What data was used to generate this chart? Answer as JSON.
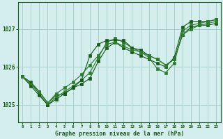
{
  "title": "Graphe pression niveau de la mer (hPa)",
  "bg_color": "#d4eeee",
  "grid_color": "#aad0d0",
  "line_color_dark": "#1a5c1a",
  "line_color_med": "#2e7d2e",
  "xlim": [
    -0.5,
    23.5
  ],
  "ylim": [
    1024.55,
    1027.7
  ],
  "yticks": [
    1025,
    1026,
    1027
  ],
  "xticks": [
    0,
    1,
    2,
    3,
    4,
    5,
    6,
    7,
    8,
    9,
    10,
    11,
    12,
    13,
    14,
    15,
    16,
    17,
    18,
    19,
    20,
    21,
    22,
    23
  ],
  "series": [
    {
      "x": [
        0,
        1,
        2,
        3,
        4,
        5,
        6,
        7,
        8,
        9,
        10,
        11,
        12,
        13,
        14,
        15,
        16,
        17,
        18,
        19,
        20,
        21,
        22,
        23
      ],
      "y": [
        1025.75,
        1025.6,
        1025.35,
        1025.05,
        1025.25,
        1025.3,
        1025.45,
        1025.55,
        1025.7,
        1026.15,
        1026.5,
        1026.65,
        1026.5,
        1026.4,
        1026.3,
        1026.2,
        1026.1,
        1026.0,
        1026.25,
        1027.05,
        1027.2,
        1027.2,
        1027.2,
        1027.25
      ],
      "color": "#1a5c1a"
    },
    {
      "x": [
        0,
        1,
        2,
        3,
        4,
        5,
        6,
        7,
        8,
        9,
        10,
        11,
        12,
        13,
        14,
        15,
        16,
        17,
        18,
        19,
        20,
        21,
        22,
        23
      ],
      "y": [
        1025.75,
        1025.55,
        1025.3,
        1025.0,
        1025.2,
        1025.35,
        1025.5,
        1025.65,
        1025.85,
        1026.25,
        1026.65,
        1026.75,
        1026.65,
        1026.5,
        1026.4,
        1026.25,
        1025.95,
        1025.85,
        1026.1,
        1026.95,
        1027.1,
        1027.15,
        1027.2,
        1027.25
      ],
      "color": "#2e7d2e"
    },
    {
      "x": [
        0,
        1,
        2,
        3,
        4,
        5,
        6,
        7,
        8,
        9,
        10,
        11,
        12,
        13,
        14,
        15,
        16,
        17,
        18,
        19,
        20,
        21,
        22,
        23
      ],
      "y": [
        1025.75,
        1025.5,
        1025.25,
        1025.0,
        1025.15,
        1025.3,
        1025.45,
        1025.65,
        1026.3,
        1026.6,
        1026.7,
        1026.7,
        1026.7,
        1026.5,
        1026.45,
        1026.3,
        1026.2,
        1026.05,
        1026.2,
        1026.85,
        1027.05,
        1027.1,
        1027.1,
        1027.15
      ],
      "color": "#1a5c1a"
    },
    {
      "x": [
        0,
        2,
        3,
        4,
        5,
        6,
        7,
        8,
        9,
        10,
        11,
        12,
        13,
        14,
        15,
        16,
        17,
        18,
        19,
        20,
        21,
        22,
        23
      ],
      "y": [
        1025.75,
        1025.35,
        1025.05,
        1025.3,
        1025.45,
        1025.6,
        1025.8,
        1026.05,
        1026.3,
        1026.6,
        1026.65,
        1026.55,
        1026.45,
        1026.4,
        1026.3,
        1026.2,
        1026.05,
        1026.2,
        1026.85,
        1027.0,
        1027.1,
        1027.15,
        1027.2
      ],
      "color": "#2e7d2e"
    }
  ]
}
